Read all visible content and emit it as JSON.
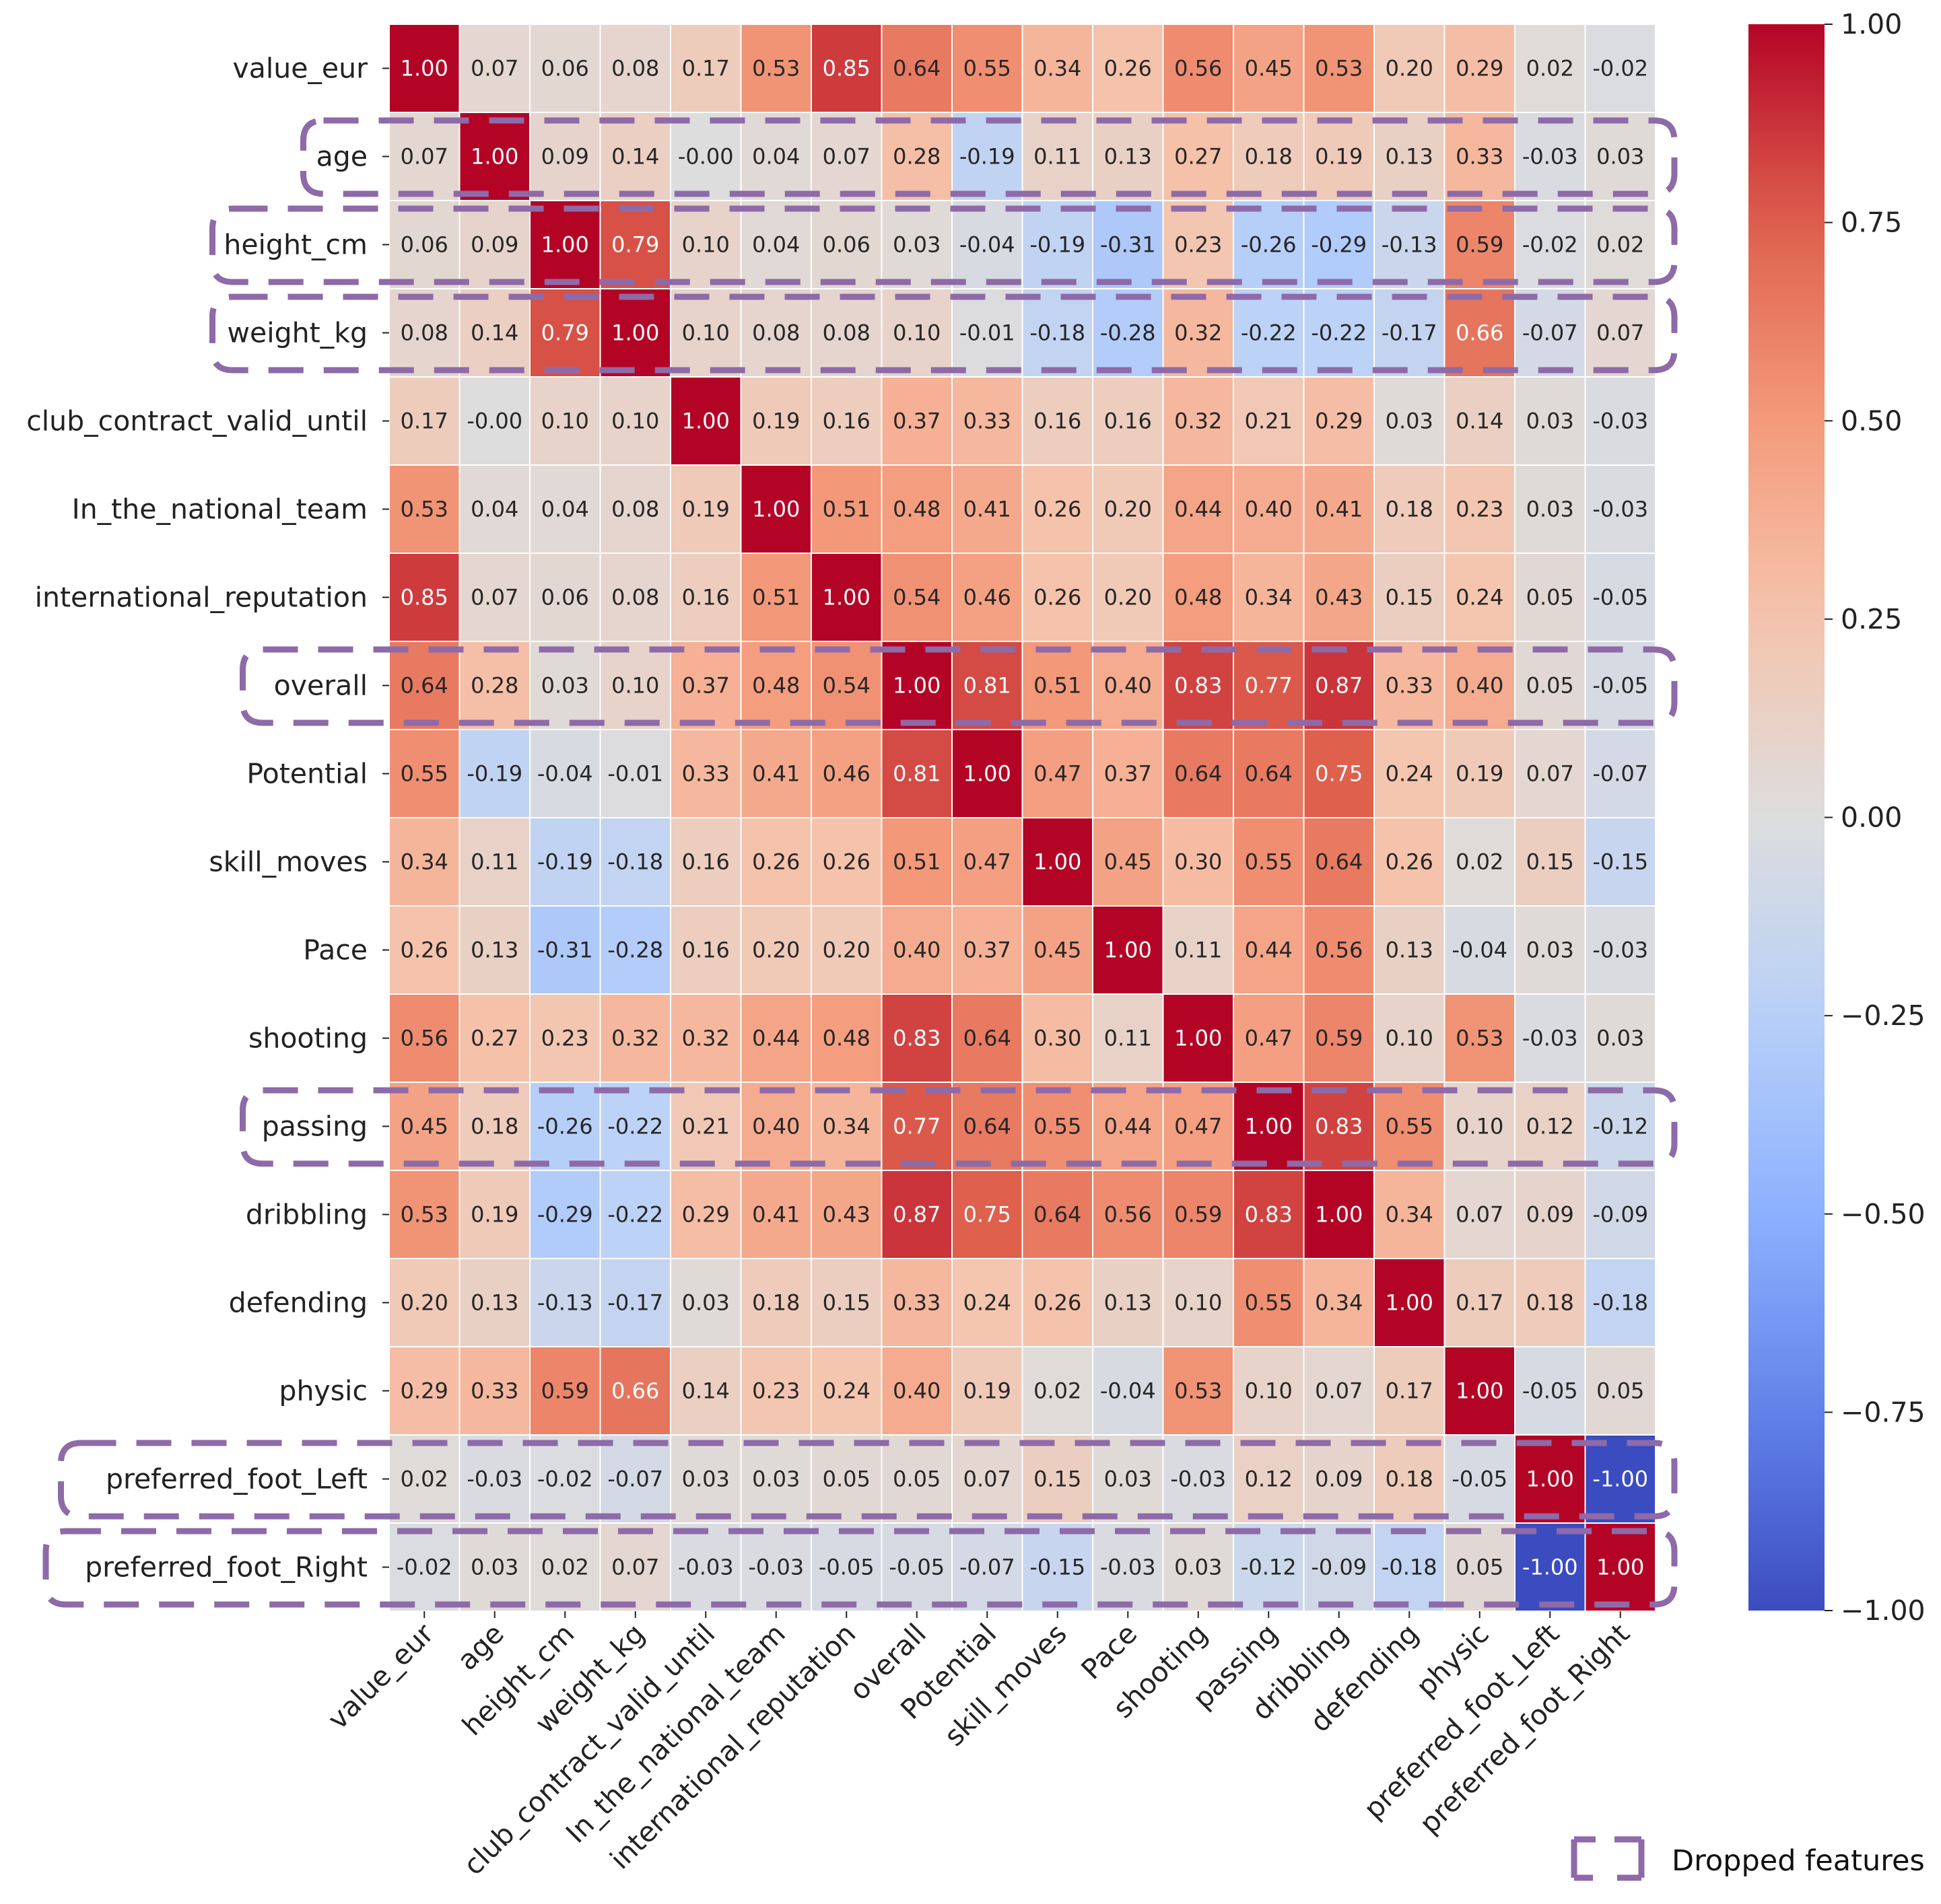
{
  "chart_data": {
    "type": "heatmap",
    "title": "",
    "xlabel": "",
    "ylabel": "",
    "labels": [
      "value_eur",
      "age",
      "height_cm",
      "weight_kg",
      "club_contract_valid_until",
      "In_the_national_team",
      "international_reputation",
      "overall",
      "Potential",
      "skill_moves",
      "Pace",
      "shooting",
      "passing",
      "dribbling",
      "defending",
      "physic",
      "preferred_foot_Left",
      "preferred_foot_Right"
    ],
    "values": [
      [
        1.0,
        0.07,
        0.06,
        0.08,
        0.17,
        0.53,
        0.85,
        0.64,
        0.55,
        0.34,
        0.26,
        0.56,
        0.45,
        0.53,
        0.2,
        0.29,
        0.02,
        -0.02
      ],
      [
        0.07,
        1.0,
        0.09,
        0.14,
        -0.0,
        0.04,
        0.07,
        0.28,
        -0.19,
        0.11,
        0.13,
        0.27,
        0.18,
        0.19,
        0.13,
        0.33,
        -0.03,
        0.03
      ],
      [
        0.06,
        0.09,
        1.0,
        0.79,
        0.1,
        0.04,
        0.06,
        0.03,
        -0.04,
        -0.19,
        -0.31,
        0.23,
        -0.26,
        -0.29,
        -0.13,
        0.59,
        -0.02,
        0.02
      ],
      [
        0.08,
        0.14,
        0.79,
        1.0,
        0.1,
        0.08,
        0.08,
        0.1,
        -0.01,
        -0.18,
        -0.28,
        0.32,
        -0.22,
        -0.22,
        -0.17,
        0.66,
        -0.07,
        0.07
      ],
      [
        0.17,
        -0.0,
        0.1,
        0.1,
        1.0,
        0.19,
        0.16,
        0.37,
        0.33,
        0.16,
        0.16,
        0.32,
        0.21,
        0.29,
        0.03,
        0.14,
        0.03,
        -0.03
      ],
      [
        0.53,
        0.04,
        0.04,
        0.08,
        0.19,
        1.0,
        0.51,
        0.48,
        0.41,
        0.26,
        0.2,
        0.44,
        0.4,
        0.41,
        0.18,
        0.23,
        0.03,
        -0.03
      ],
      [
        0.85,
        0.07,
        0.06,
        0.08,
        0.16,
        0.51,
        1.0,
        0.54,
        0.46,
        0.26,
        0.2,
        0.48,
        0.34,
        0.43,
        0.15,
        0.24,
        0.05,
        -0.05
      ],
      [
        0.64,
        0.28,
        0.03,
        0.1,
        0.37,
        0.48,
        0.54,
        1.0,
        0.81,
        0.51,
        0.4,
        0.83,
        0.77,
        0.87,
        0.33,
        0.4,
        0.05,
        -0.05
      ],
      [
        0.55,
        -0.19,
        -0.04,
        -0.01,
        0.33,
        0.41,
        0.46,
        0.81,
        1.0,
        0.47,
        0.37,
        0.64,
        0.64,
        0.75,
        0.24,
        0.19,
        0.07,
        -0.07
      ],
      [
        0.34,
        0.11,
        -0.19,
        -0.18,
        0.16,
        0.26,
        0.26,
        0.51,
        0.47,
        1.0,
        0.45,
        0.3,
        0.55,
        0.64,
        0.26,
        0.02,
        0.15,
        -0.15
      ],
      [
        0.26,
        0.13,
        -0.31,
        -0.28,
        0.16,
        0.2,
        0.2,
        0.4,
        0.37,
        0.45,
        1.0,
        0.11,
        0.44,
        0.56,
        0.13,
        -0.04,
        0.03,
        -0.03
      ],
      [
        0.56,
        0.27,
        0.23,
        0.32,
        0.32,
        0.44,
        0.48,
        0.83,
        0.64,
        0.3,
        0.11,
        1.0,
        0.47,
        0.59,
        0.1,
        0.53,
        -0.03,
        0.03
      ],
      [
        0.45,
        0.18,
        -0.26,
        -0.22,
        0.21,
        0.4,
        0.34,
        0.77,
        0.64,
        0.55,
        0.44,
        0.47,
        1.0,
        0.83,
        0.55,
        0.1,
        0.12,
        -0.12
      ],
      [
        0.53,
        0.19,
        -0.29,
        -0.22,
        0.29,
        0.41,
        0.43,
        0.87,
        0.75,
        0.64,
        0.56,
        0.59,
        0.83,
        1.0,
        0.34,
        0.07,
        0.09,
        -0.09
      ],
      [
        0.2,
        0.13,
        -0.13,
        -0.17,
        0.03,
        0.18,
        0.15,
        0.33,
        0.24,
        0.26,
        0.13,
        0.1,
        0.55,
        0.34,
        1.0,
        0.17,
        0.18,
        -0.18
      ],
      [
        0.29,
        0.33,
        0.59,
        0.66,
        0.14,
        0.23,
        0.24,
        0.4,
        0.19,
        0.02,
        -0.04,
        0.53,
        0.1,
        0.07,
        0.17,
        1.0,
        -0.05,
        0.05
      ],
      [
        0.02,
        -0.03,
        -0.02,
        -0.07,
        0.03,
        0.03,
        0.05,
        0.05,
        0.07,
        0.15,
        0.03,
        -0.03,
        0.12,
        0.09,
        0.18,
        -0.05,
        1.0,
        -1.0
      ],
      [
        -0.02,
        0.03,
        0.02,
        0.07,
        -0.03,
        -0.03,
        -0.05,
        -0.05,
        -0.07,
        -0.15,
        -0.03,
        0.03,
        -0.12,
        -0.09,
        -0.18,
        0.05,
        -1.0,
        1.0
      ]
    ],
    "value_format": "0.00",
    "colormap": "coolwarm",
    "vmin": -1.0,
    "vmax": 1.0,
    "colorbar": {
      "ticks": [
        1.0,
        0.75,
        0.5,
        0.25,
        0.0,
        -0.25,
        -0.5,
        -0.75,
        -1.0
      ],
      "tick_labels": [
        "1.00",
        "0.75",
        "0.50",
        "0.25",
        "0.00",
        "−0.25",
        "−0.50",
        "−0.75",
        "−1.00"
      ],
      "placement": "right"
    },
    "highlighted_rows": [
      "age",
      "height_cm",
      "weight_kg",
      "overall",
      "passing",
      "preferred_foot_Left",
      "preferred_foot_Right"
    ],
    "highlight_color": "#8e6aa8",
    "legend": {
      "label": "Dropped features",
      "placement": "bottom-right"
    }
  }
}
